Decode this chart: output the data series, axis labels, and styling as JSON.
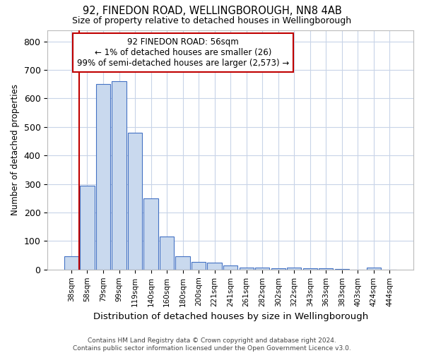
{
  "title1": "92, FINEDON ROAD, WELLINGBOROUGH, NN8 4AB",
  "title2": "Size of property relative to detached houses in Wellingborough",
  "xlabel": "Distribution of detached houses by size in Wellingborough",
  "ylabel": "Number of detached properties",
  "footnote": "Contains HM Land Registry data © Crown copyright and database right 2024.\nContains public sector information licensed under the Open Government Licence v3.0.",
  "bar_labels": [
    "38sqm",
    "58sqm",
    "79sqm",
    "99sqm",
    "119sqm",
    "140sqm",
    "160sqm",
    "180sqm",
    "200sqm",
    "221sqm",
    "241sqm",
    "261sqm",
    "282sqm",
    "302sqm",
    "322sqm",
    "343sqm",
    "363sqm",
    "383sqm",
    "403sqm",
    "424sqm",
    "444sqm"
  ],
  "bar_values": [
    47,
    293,
    650,
    660,
    480,
    250,
    115,
    47,
    28,
    25,
    15,
    8,
    6,
    5,
    7,
    5,
    5,
    3,
    0,
    8,
    0
  ],
  "bar_color": "#c9d9ee",
  "bar_edge_color": "#4472c4",
  "highlight_index": 1,
  "highlight_line_color": "#c00000",
  "annotation_text": "92 FINEDON ROAD: 56sqm\n← 1% of detached houses are smaller (26)\n99% of semi-detached houses are larger (2,573) →",
  "annotation_box_color": "#ffffff",
  "annotation_box_edge": "#c00000",
  "ylim": [
    0,
    840
  ],
  "yticks": [
    0,
    100,
    200,
    300,
    400,
    500,
    600,
    700,
    800
  ],
  "grid_color": "#c8d4e8",
  "background_color": "#ffffff"
}
